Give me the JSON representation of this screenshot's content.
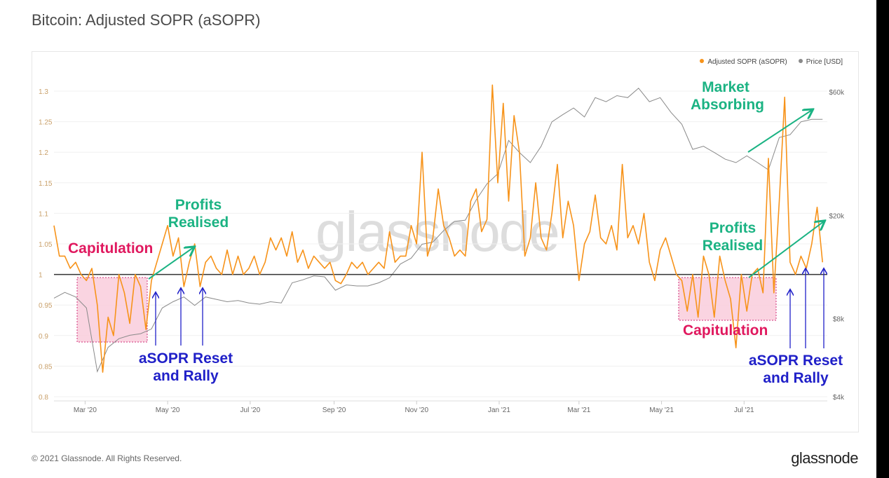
{
  "title": "Bitcoin: Adjusted SOPR (aSOPR)",
  "footer": "© 2021 Glassnode. All Rights Reserved.",
  "brand": "glassnode",
  "watermark": "glassnode",
  "colors": {
    "asopr": "#f7931a",
    "price": "#8a8a8a",
    "teal": "#1bb383",
    "pink": "#e0185e",
    "blue": "#2020c8"
  },
  "annotations": {
    "capitulation_1": "Capitulation",
    "profits_1": "Profits Realised",
    "reset_1": "aSOPR Reset and Rally",
    "market_absorbing": "Market Absorbing",
    "profits_2": "Profits Realised",
    "capitulation_2": "Capitulation",
    "reset_2": "aSOPR Reset and Rally"
  },
  "chart_data": {
    "type": "line",
    "title": "Bitcoin: Adjusted SOPR (aSOPR)",
    "legend": {
      "placement": "top-right",
      "entries": [
        "Adjusted SOPR (aSOPR)",
        "Price [USD]"
      ]
    },
    "x_start_date": "2020-02-07",
    "x_ticks": [
      {
        "label": "Mar '20",
        "date": "2020-03-01"
      },
      {
        "label": "May '20",
        "date": "2020-05-01"
      },
      {
        "label": "Jul '20",
        "date": "2020-07-01"
      },
      {
        "label": "Sep '20",
        "date": "2020-09-01"
      },
      {
        "label": "Nov '20",
        "date": "2020-11-01"
      },
      {
        "label": "Jan '21",
        "date": "2021-01-01"
      },
      {
        "label": "Mar '21",
        "date": "2021-03-01"
      },
      {
        "label": "May '21",
        "date": "2021-05-01"
      },
      {
        "label": "Jul '21",
        "date": "2021-07-01"
      }
    ],
    "y_left": {
      "label": "aSOPR",
      "range": [
        0.8,
        1.3
      ],
      "ticks": [
        "0.8",
        "0.85",
        "0.9",
        "0.95",
        "1",
        "1.05",
        "1.1",
        "1.15",
        "1.2",
        "1.25",
        "1.3"
      ],
      "reference_line": 1
    },
    "y_right": {
      "label": "Price [USD]",
      "scale": "log",
      "range": [
        4000,
        60000
      ],
      "ticks": [
        {
          "label": "$4k",
          "value": 4000
        },
        {
          "label": "$8k",
          "value": 8000
        },
        {
          "label": "$20k",
          "value": 20000
        },
        {
          "label": "$60k",
          "value": 60000
        }
      ]
    },
    "series": [
      {
        "name": "Adjusted SOPR (aSOPR)",
        "axis": "left",
        "step_days": 4,
        "values": [
          1.08,
          1.03,
          1.03,
          1.01,
          1.02,
          1.0,
          0.99,
          1.01,
          0.95,
          0.84,
          0.93,
          0.9,
          1.0,
          0.97,
          0.92,
          1.0,
          0.98,
          0.91,
          0.99,
          1.02,
          1.05,
          1.08,
          1.03,
          1.06,
          0.98,
          1.02,
          1.05,
          0.98,
          1.02,
          1.03,
          1.01,
          1.0,
          1.04,
          1.0,
          1.03,
          1.0,
          1.01,
          1.03,
          1.0,
          1.02,
          1.06,
          1.04,
          1.06,
          1.03,
          1.07,
          1.02,
          1.04,
          1.01,
          1.03,
          1.02,
          1.01,
          1.02,
          0.99,
          0.985,
          1.0,
          1.02,
          1.01,
          1.02,
          1.0,
          1.01,
          1.02,
          1.01,
          1.07,
          1.02,
          1.03,
          1.03,
          1.08,
          1.05,
          1.2,
          1.03,
          1.06,
          1.14,
          1.08,
          1.06,
          1.03,
          1.04,
          1.03,
          1.12,
          1.14,
          1.07,
          1.09,
          1.31,
          1.15,
          1.28,
          1.12,
          1.26,
          1.2,
          1.03,
          1.06,
          1.15,
          1.06,
          1.04,
          1.1,
          1.18,
          1.06,
          1.12,
          1.08,
          0.99,
          1.05,
          1.07,
          1.13,
          1.06,
          1.05,
          1.08,
          1.04,
          1.18,
          1.06,
          1.08,
          1.05,
          1.1,
          1.02,
          0.99,
          1.04,
          1.06,
          1.03,
          1.0,
          0.99,
          0.94,
          1.0,
          0.93,
          1.03,
          1.0,
          0.93,
          1.03,
          0.99,
          0.96,
          0.88,
          1.0,
          0.94,
          1.0,
          1.01,
          0.97,
          1.19,
          0.97,
          1.12,
          1.29,
          1.02,
          1.0,
          1.03,
          1.01,
          1.05,
          1.11,
          1.02
        ]
      },
      {
        "name": "Price [USD]",
        "axis": "right",
        "step_days": 8,
        "values": [
          9600,
          10100,
          9700,
          8800,
          5000,
          6200,
          6700,
          6900,
          7000,
          7300,
          8800,
          9300,
          9700,
          9000,
          9700,
          9500,
          9300,
          9400,
          9200,
          9100,
          9300,
          9200,
          11000,
          11300,
          11700,
          11600,
          10300,
          10800,
          10700,
          10700,
          11000,
          11500,
          13000,
          13700,
          15500,
          15800,
          17500,
          19000,
          19200,
          23000,
          26500,
          29000,
          39000,
          35000,
          32000,
          37000,
          46000,
          49000,
          52000,
          48000,
          57000,
          55000,
          58000,
          57000,
          62000,
          55000,
          57000,
          50000,
          45000,
          36000,
          37000,
          35000,
          33000,
          32000,
          34000,
          32000,
          30000,
          40000,
          41000,
          46000,
          47000,
          47000
        ]
      }
    ]
  }
}
